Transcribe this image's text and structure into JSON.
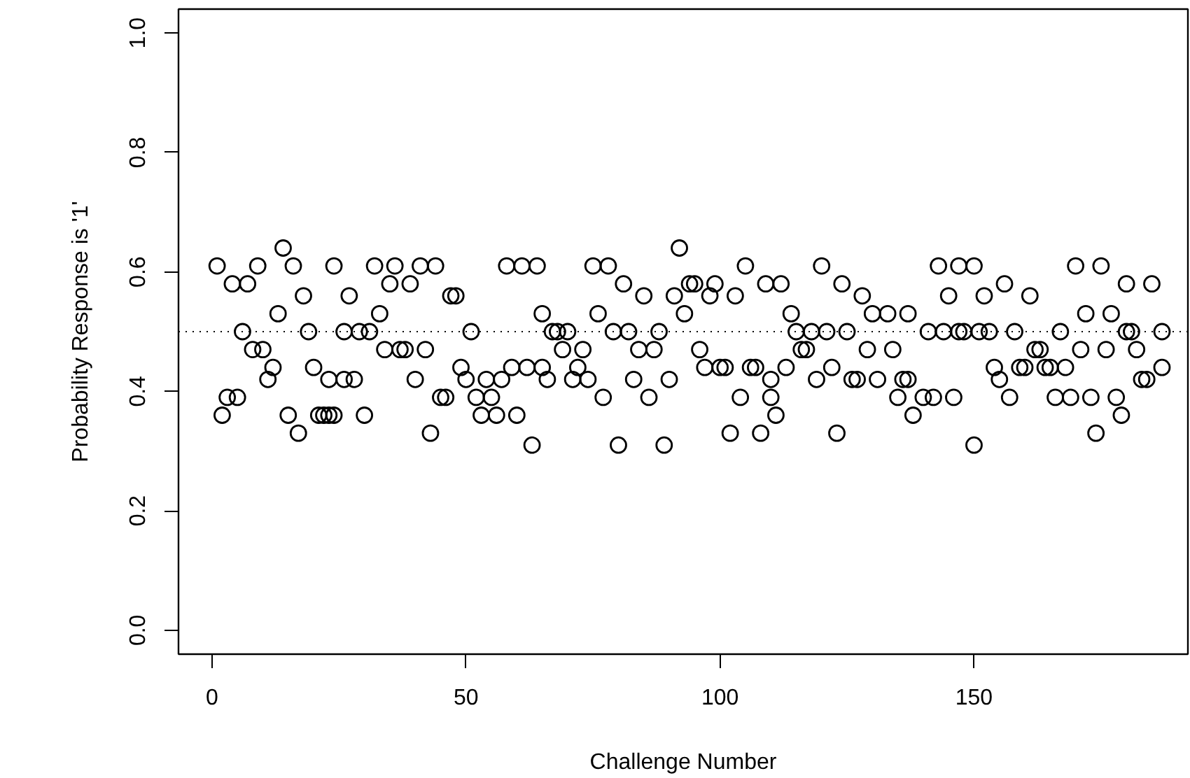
{
  "chart_data": {
    "type": "scatter",
    "xlabel": "Challenge Number",
    "ylabel": "Probability Response is '1'",
    "xlim": [
      -6.6,
      192.1
    ],
    "ylim": [
      -0.04,
      1.04
    ],
    "xticks": [
      0,
      50,
      100,
      150
    ],
    "yticks": [
      {
        "value": 0,
        "label": "0.0"
      },
      {
        "value": 0.2,
        "label": "0.2"
      },
      {
        "value": 0.4,
        "label": "0.4"
      },
      {
        "value": 0.6,
        "label": "0.6"
      },
      {
        "value": 0.8,
        "label": "0.8"
      },
      {
        "value": 1,
        "label": "1.0"
      }
    ],
    "grid": false,
    "marker": "circle",
    "ref_lines": [
      {
        "axis": "y",
        "value": 0.5,
        "color": "#000000",
        "line_style": "dotted"
      }
    ],
    "series": [
      {
        "color": "#000000",
        "x": [
          1,
          2,
          3,
          4,
          5,
          6,
          7,
          8,
          9,
          10,
          11,
          12,
          13,
          14,
          15,
          16,
          17,
          18,
          19,
          20,
          21,
          22,
          23,
          24,
          23,
          24,
          26,
          26,
          27,
          28,
          29,
          30,
          31,
          32,
          33,
          34,
          35,
          36,
          37,
          38,
          39,
          40,
          41,
          42,
          43,
          44,
          45,
          46,
          47,
          48,
          49,
          50,
          51,
          52,
          53,
          54,
          55,
          56,
          57,
          58,
          59,
          60,
          61,
          62,
          63,
          64,
          65,
          65,
          66,
          67,
          68,
          69,
          70,
          71,
          72,
          73,
          74,
          75,
          76,
          77,
          78,
          79,
          80,
          81,
          82,
          83,
          84,
          85,
          86,
          87,
          88,
          89,
          90,
          91,
          92,
          93,
          94,
          95,
          96,
          97,
          98,
          99,
          100,
          101,
          102,
          103,
          104,
          105,
          106,
          107,
          108,
          109,
          110,
          110,
          111,
          112,
          113,
          114,
          115,
          116,
          117,
          118,
          119,
          120,
          121,
          122,
          123,
          124,
          125,
          126,
          127,
          128,
          129,
          130,
          131,
          133,
          134,
          135,
          136,
          137,
          137,
          138,
          140,
          141,
          142,
          143,
          144,
          145,
          146,
          147,
          147,
          148,
          150,
          150,
          151,
          152,
          153,
          154,
          155,
          156,
          157,
          158,
          159,
          160,
          161,
          162,
          163,
          164,
          165,
          166,
          167,
          168,
          169,
          170,
          171,
          172,
          173,
          174,
          175,
          176,
          177,
          178,
          179,
          180,
          180,
          181,
          182,
          183,
          184,
          185,
          187,
          187
        ],
        "values": [
          0.61,
          0.36,
          0.39,
          0.58,
          0.39,
          0.5,
          0.58,
          0.47,
          0.61,
          0.47,
          0.42,
          0.44,
          0.53,
          0.64,
          0.36,
          0.61,
          0.33,
          0.56,
          0.5,
          0.44,
          0.36,
          0.36,
          0.36,
          0.36,
          0.42,
          0.61,
          0.42,
          0.5,
          0.56,
          0.42,
          0.5,
          0.36,
          0.5,
          0.61,
          0.53,
          0.47,
          0.58,
          0.61,
          0.47,
          0.47,
          0.58,
          0.42,
          0.61,
          0.47,
          0.33,
          0.61,
          0.39,
          0.39,
          0.56,
          0.56,
          0.44,
          0.42,
          0.5,
          0.39,
          0.36,
          0.42,
          0.39,
          0.36,
          0.42,
          0.61,
          0.44,
          0.36,
          0.61,
          0.44,
          0.31,
          0.61,
          0.44,
          0.53,
          0.42,
          0.5,
          0.5,
          0.47,
          0.5,
          0.42,
          0.44,
          0.47,
          0.42,
          0.61,
          0.53,
          0.39,
          0.61,
          0.5,
          0.31,
          0.58,
          0.5,
          0.42,
          0.47,
          0.56,
          0.39,
          0.47,
          0.5,
          0.31,
          0.42,
          0.56,
          0.64,
          0.53,
          0.58,
          0.58,
          0.47,
          0.44,
          0.56,
          0.58,
          0.44,
          0.44,
          0.33,
          0.56,
          0.39,
          0.61,
          0.44,
          0.44,
          0.33,
          0.58,
          0.42,
          0.39,
          0.36,
          0.58,
          0.44,
          0.53,
          0.5,
          0.47,
          0.47,
          0.5,
          0.42,
          0.61,
          0.5,
          0.44,
          0.33,
          0.58,
          0.5,
          0.42,
          0.42,
          0.56,
          0.47,
          0.53,
          0.42,
          0.53,
          0.47,
          0.39,
          0.42,
          0.53,
          0.42,
          0.36,
          0.39,
          0.5,
          0.39,
          0.61,
          0.5,
          0.56,
          0.39,
          0.61,
          0.5,
          0.5,
          0.31,
          0.61,
          0.5,
          0.56,
          0.5,
          0.44,
          0.42,
          0.58,
          0.39,
          0.5,
          0.44,
          0.44,
          0.56,
          0.47,
          0.47,
          0.44,
          0.44,
          0.39,
          0.5,
          0.44,
          0.39,
          0.61,
          0.47,
          0.53,
          0.39,
          0.33,
          0.61,
          0.47,
          0.53,
          0.39,
          0.36,
          0.58,
          0.5,
          0.5,
          0.47,
          0.42,
          0.42,
          0.58,
          0.44,
          0.5
        ]
      }
    ]
  }
}
